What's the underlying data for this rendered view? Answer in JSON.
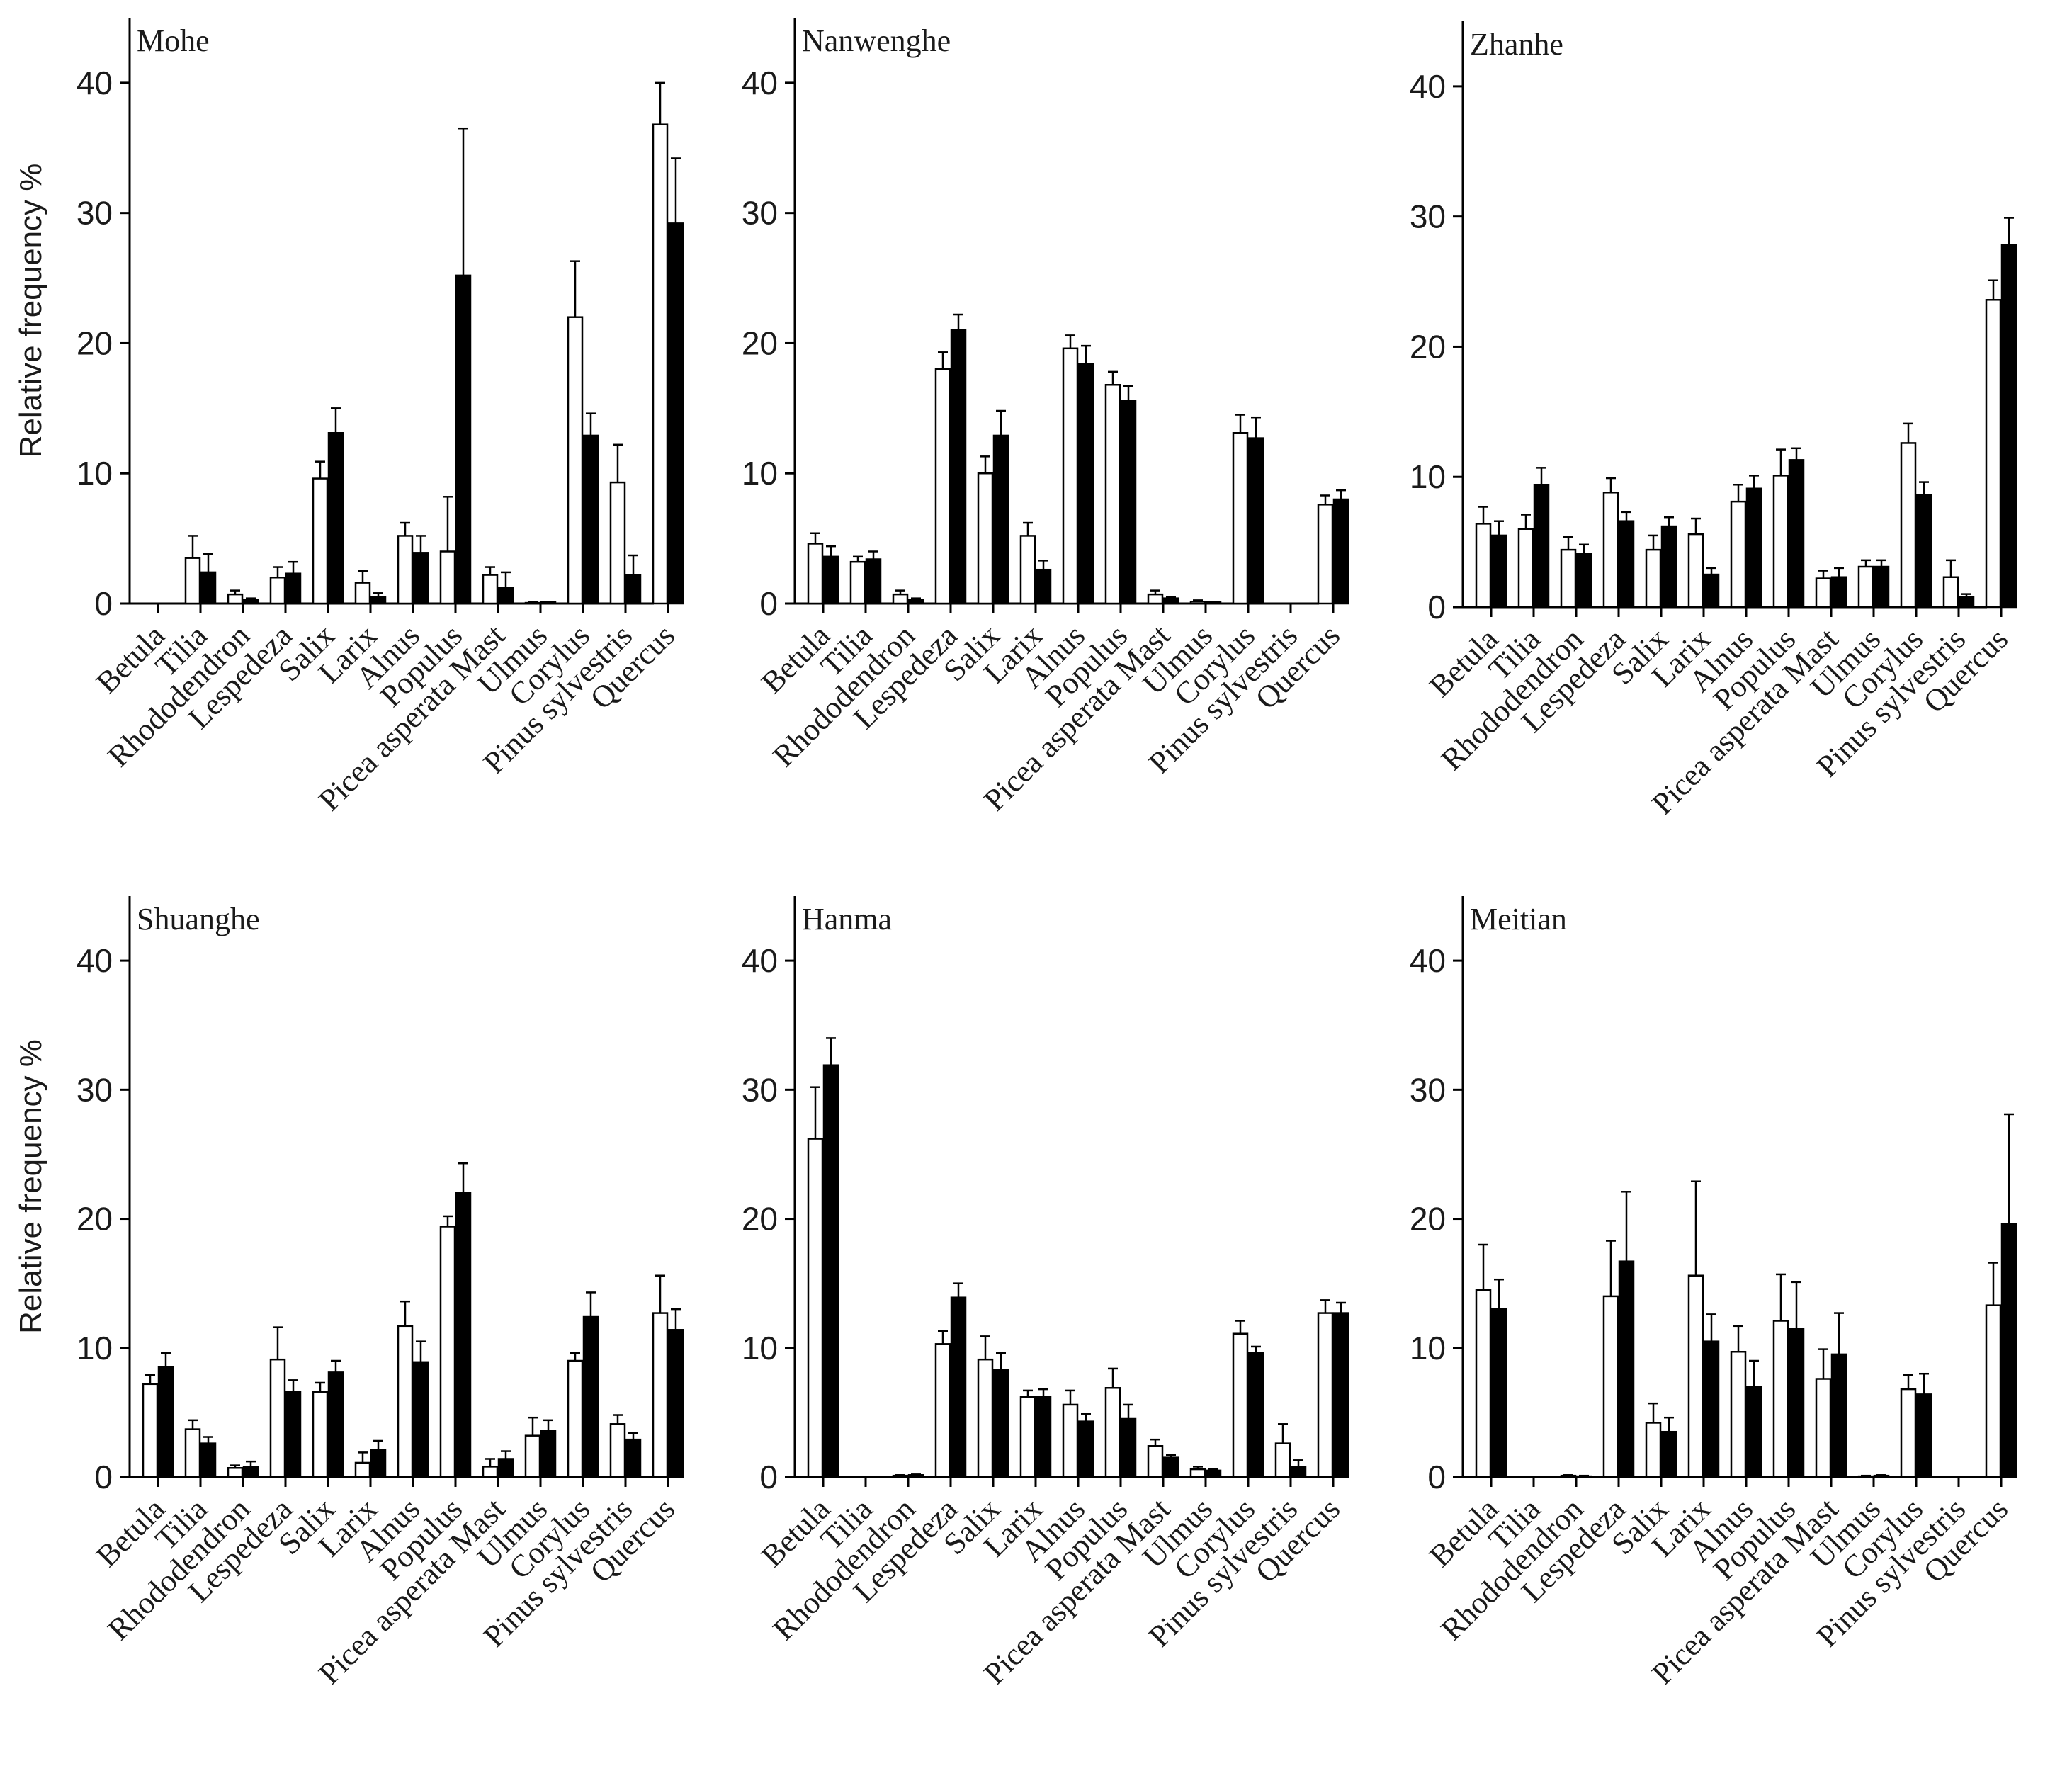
{
  "chart_data": [
    {
      "type": "bar",
      "title": "Mohe",
      "ylabel": "Relative frequency %",
      "xlabel": "",
      "ylim": [
        0,
        45
      ],
      "yticks": [
        "0",
        "10",
        "20",
        "30",
        "40"
      ],
      "categories": [
        "Betula",
        "Tilia",
        "Rhododendron",
        "Lespedeza",
        "Salix",
        "Larix",
        "Alnus",
        "Populus",
        "Picea asperata Mast",
        "Ulmus",
        "Corylus",
        "Pinus sylvestris",
        "Quercus"
      ],
      "series": [
        {
          "name": "open",
          "fill": "#ffffff",
          "values": [
            0,
            3.5,
            0.7,
            2.0,
            9.6,
            1.6,
            5.2,
            4.0,
            2.2,
            0.05,
            22.0,
            9.3,
            36.8
          ],
          "errors": [
            0,
            1.7,
            0.3,
            0.8,
            1.3,
            0.9,
            1.0,
            4.2,
            0.6,
            0.05,
            4.3,
            2.9,
            3.2
          ]
        },
        {
          "name": "filled",
          "fill": "#000000",
          "values": [
            0,
            2.4,
            0.3,
            2.3,
            13.1,
            0.5,
            3.9,
            25.2,
            1.2,
            0.1,
            12.9,
            2.2,
            29.2
          ],
          "errors": [
            0,
            1.4,
            0.1,
            0.9,
            1.9,
            0.3,
            1.3,
            11.3,
            1.2,
            0.05,
            1.7,
            1.5,
            5.0
          ]
        }
      ]
    },
    {
      "type": "bar",
      "title": "Nanwenghe",
      "ylabel": "",
      "xlabel": "",
      "ylim": [
        0,
        45
      ],
      "yticks": [
        "0",
        "10",
        "20",
        "30",
        "40"
      ],
      "categories": [
        "Betula",
        "Tilia",
        "Rhododendron",
        "Lespedeza",
        "Salix",
        "Larix",
        "Alnus",
        "Populus",
        "Picea asperata Mast",
        "Ulmus",
        "Corylus",
        "Pinus sylvestris",
        "Quercus"
      ],
      "series": [
        {
          "name": "open",
          "fill": "#ffffff",
          "values": [
            4.6,
            3.2,
            0.7,
            18.0,
            10.0,
            5.2,
            19.6,
            16.8,
            0.7,
            0.15,
            13.1,
            0,
            7.6
          ],
          "errors": [
            0.8,
            0.4,
            0.3,
            1.3,
            1.3,
            1.0,
            1.0,
            1.0,
            0.3,
            0.1,
            1.4,
            0,
            0.7
          ]
        },
        {
          "name": "filled",
          "fill": "#000000",
          "values": [
            3.6,
            3.4,
            0.3,
            21.0,
            12.9,
            2.6,
            18.4,
            15.6,
            0.4,
            0.1,
            12.7,
            0,
            8.0
          ],
          "errors": [
            0.8,
            0.6,
            0.1,
            1.2,
            1.9,
            0.7,
            1.4,
            1.1,
            0.1,
            0.05,
            1.6,
            0,
            0.7
          ]
        }
      ]
    },
    {
      "type": "bar",
      "title": "Zhanhe",
      "ylabel": "",
      "xlabel": "",
      "ylim": [
        0,
        45
      ],
      "yticks": [
        "0",
        "10",
        "20",
        "30",
        "40"
      ],
      "categories": [
        "Betula",
        "Tilia",
        "Rhododendron",
        "Lespedeza",
        "Salix",
        "Larix",
        "Alnus",
        "Populus",
        "Picea asperata Mast",
        "Ulmus",
        "Corylus",
        "Pinus sylvestris",
        "Quercus"
      ],
      "series": [
        {
          "name": "open",
          "fill": "#ffffff",
          "values": [
            6.4,
            6.0,
            4.4,
            8.8,
            4.4,
            5.6,
            8.1,
            10.1,
            2.2,
            3.1,
            12.6,
            2.3,
            23.6
          ],
          "errors": [
            1.3,
            1.1,
            1.0,
            1.1,
            1.1,
            1.2,
            1.3,
            2.0,
            0.6,
            0.5,
            1.5,
            1.3,
            1.5
          ]
        },
        {
          "name": "filled",
          "fill": "#000000",
          "values": [
            5.5,
            9.4,
            4.1,
            6.6,
            6.2,
            2.5,
            9.1,
            11.3,
            2.3,
            3.1,
            8.6,
            0.8,
            27.8
          ],
          "errors": [
            1.1,
            1.3,
            0.7,
            0.7,
            0.7,
            0.5,
            1.0,
            0.9,
            0.7,
            0.5,
            1.0,
            0.2,
            2.1
          ]
        }
      ]
    },
    {
      "type": "bar",
      "title": "Shuanghe",
      "ylabel": "Relative frequency %",
      "xlabel": "",
      "ylim": [
        0,
        45
      ],
      "yticks": [
        "0",
        "10",
        "20",
        "30",
        "40"
      ],
      "categories": [
        "Betula",
        "Tilia",
        "Rhododendron",
        "Lespedeza",
        "Salix",
        "Larix",
        "Alnus",
        "Populus",
        "Picea asperata Mast",
        "Ulmus",
        "Corylus",
        "Pinus sylvestris",
        "Quercus"
      ],
      "series": [
        {
          "name": "open",
          "fill": "#ffffff",
          "values": [
            7.2,
            3.7,
            0.7,
            9.1,
            6.6,
            1.1,
            11.7,
            19.4,
            0.8,
            3.2,
            9.0,
            4.1,
            12.7
          ],
          "errors": [
            0.7,
            0.7,
            0.2,
            2.5,
            0.7,
            0.8,
            1.9,
            0.8,
            0.6,
            1.4,
            0.6,
            0.7,
            2.9
          ]
        },
        {
          "name": "filled",
          "fill": "#000000",
          "values": [
            8.5,
            2.6,
            0.8,
            6.6,
            8.1,
            2.1,
            8.9,
            22.0,
            1.4,
            3.6,
            12.4,
            2.9,
            11.4
          ],
          "errors": [
            1.1,
            0.5,
            0.4,
            0.9,
            0.9,
            0.7,
            1.6,
            2.3,
            0.6,
            0.8,
            1.9,
            0.5,
            1.6
          ]
        }
      ]
    },
    {
      "type": "bar",
      "title": "Hanma",
      "ylabel": "",
      "xlabel": "",
      "ylim": [
        0,
        45
      ],
      "yticks": [
        "0",
        "10",
        "20",
        "30",
        "40"
      ],
      "categories": [
        "Betula",
        "Tilia",
        "Rhododendron",
        "Lespedeza",
        "Salix",
        "Larix",
        "Alnus",
        "Populus",
        "Picea asperata Mast",
        "Ulmus",
        "Corylus",
        "Pinus sylvestris",
        "Quercus"
      ],
      "series": [
        {
          "name": "open",
          "fill": "#ffffff",
          "values": [
            26.2,
            0,
            0.1,
            10.3,
            9.1,
            6.2,
            5.6,
            6.9,
            2.4,
            0.6,
            11.1,
            2.6,
            12.7
          ],
          "errors": [
            4.0,
            0,
            0.05,
            1.0,
            1.8,
            0.5,
            1.1,
            1.5,
            0.5,
            0.2,
            1.0,
            1.5,
            1.0
          ]
        },
        {
          "name": "filled",
          "fill": "#000000",
          "values": [
            31.9,
            0,
            0.15,
            13.9,
            8.3,
            6.2,
            4.3,
            4.5,
            1.5,
            0.5,
            9.6,
            0.8,
            12.7
          ],
          "errors": [
            2.1,
            0,
            0.05,
            1.1,
            1.3,
            0.6,
            0.6,
            1.1,
            0.2,
            0.1,
            0.5,
            0.5,
            0.8
          ]
        }
      ]
    },
    {
      "type": "bar",
      "title": "Meitian",
      "ylabel": "",
      "xlabel": "",
      "ylim": [
        0,
        45
      ],
      "yticks": [
        "0",
        "10",
        "20",
        "30",
        "40"
      ],
      "categories": [
        "Betula",
        "Tilia",
        "Rhododendron",
        "Lespedeza",
        "Salix",
        "Larix",
        "Alnus",
        "Populus",
        "Picea asperata Mast",
        "Ulmus",
        "Corylus",
        "Pinus sylvestris",
        "Quercus"
      ],
      "series": [
        {
          "name": "open",
          "fill": "#ffffff",
          "values": [
            14.5,
            0,
            0.1,
            14.0,
            4.2,
            15.6,
            9.7,
            12.1,
            7.6,
            0.05,
            6.8,
            0,
            13.3
          ],
          "errors": [
            3.5,
            0,
            0.05,
            4.3,
            1.5,
            7.3,
            2.0,
            3.6,
            2.3,
            0.05,
            1.1,
            0,
            3.3
          ]
        },
        {
          "name": "filled",
          "fill": "#000000",
          "values": [
            13.0,
            0,
            0.05,
            16.7,
            3.5,
            10.5,
            7.0,
            11.5,
            9.5,
            0.1,
            6.4,
            0,
            19.6
          ],
          "errors": [
            2.3,
            0,
            0.05,
            5.4,
            1.1,
            2.1,
            2.0,
            3.6,
            3.2,
            0.05,
            1.6,
            0,
            8.5
          ]
        }
      ]
    }
  ]
}
